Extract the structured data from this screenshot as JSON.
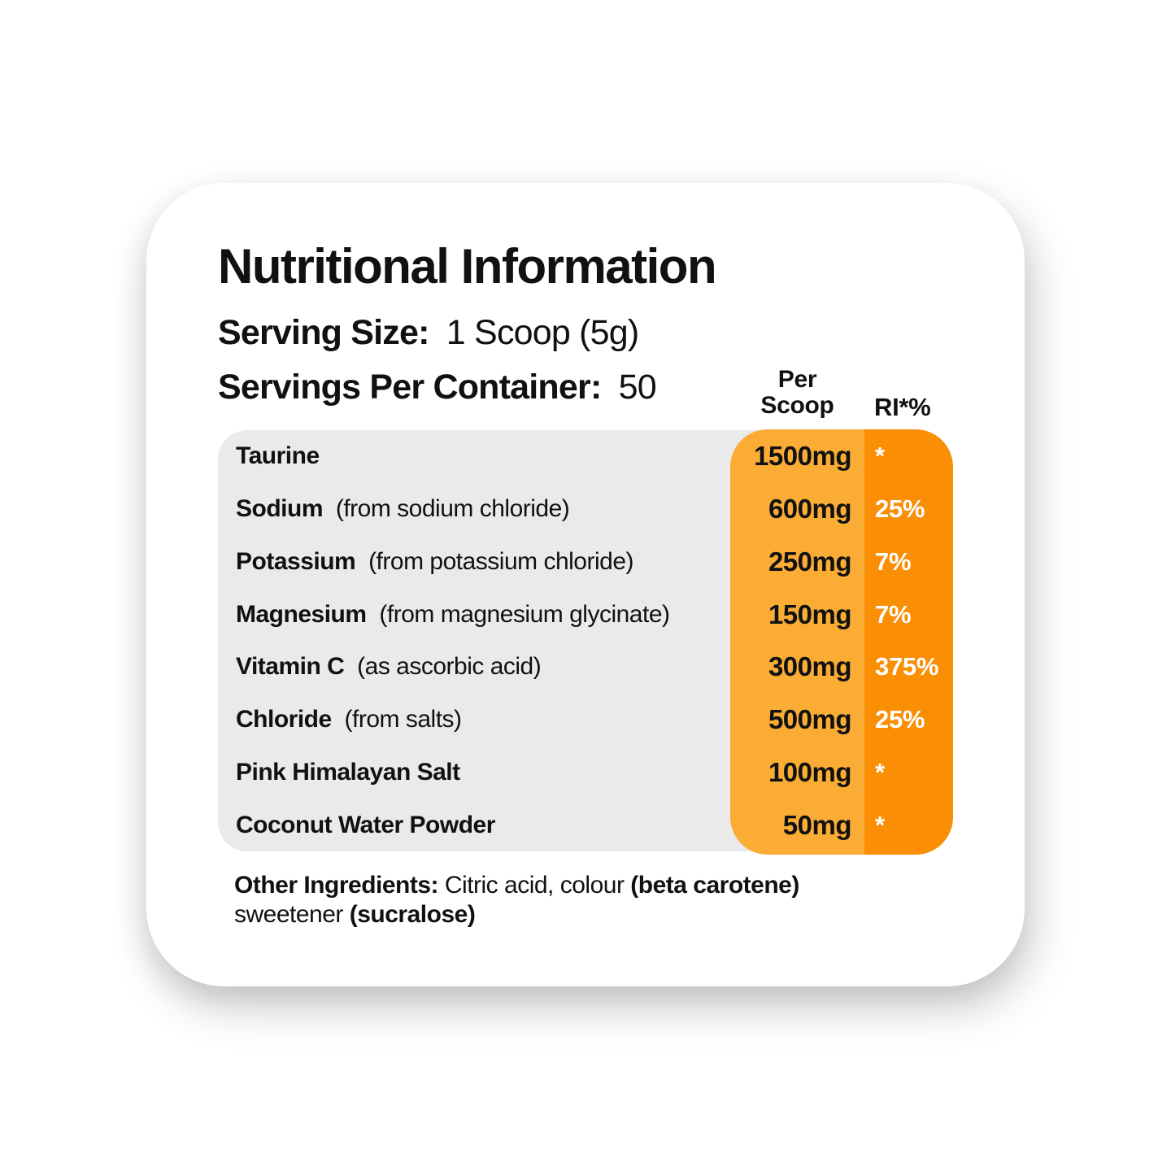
{
  "label": {
    "title": "Nutritional Information",
    "serving_size": {
      "label": "Serving Size:",
      "value": "1 Scoop (5g)"
    },
    "servings_per_container": {
      "label": "Servings Per Container:",
      "value": "50"
    },
    "columns": {
      "per_scoop_line1": "Per",
      "per_scoop_line2": "Scoop",
      "ri": "RI*%"
    },
    "rows": [
      {
        "name": "Taurine",
        "detail": "",
        "per_scoop": "1500mg",
        "ri": "*"
      },
      {
        "name": "Sodium",
        "detail": "(from sodium chloride)",
        "per_scoop": "600mg",
        "ri": "25%"
      },
      {
        "name": "Potassium",
        "detail": "(from potassium chloride)",
        "per_scoop": "250mg",
        "ri": "7%"
      },
      {
        "name": "Magnesium",
        "detail": "(from magnesium glycinate)",
        "per_scoop": "150mg",
        "ri": "7%"
      },
      {
        "name": "Vitamin C",
        "detail": "(as ascorbic acid)",
        "per_scoop": "300mg",
        "ri": "375%"
      },
      {
        "name": "Chloride",
        "detail": "(from salts)",
        "per_scoop": "500mg",
        "ri": "25%"
      },
      {
        "name": "Pink Himalayan Salt",
        "detail": "",
        "per_scoop": "100mg",
        "ri": "*"
      },
      {
        "name": "Coconut Water Powder",
        "detail": "",
        "per_scoop": "50mg",
        "ri": "*"
      }
    ],
    "other_ingredients": {
      "bold_label": "Other Ingredients:",
      "text_1": " Citric acid, colour ",
      "bold_1": "(beta carotene)",
      "text_2": "sweetener ",
      "bold_2": "(sucralose)"
    },
    "colors": {
      "table_bg": "#EAEAEA",
      "per_scoop_col": "#FBAC35",
      "ri_col": "#FA8E05",
      "text": "#111111"
    }
  }
}
